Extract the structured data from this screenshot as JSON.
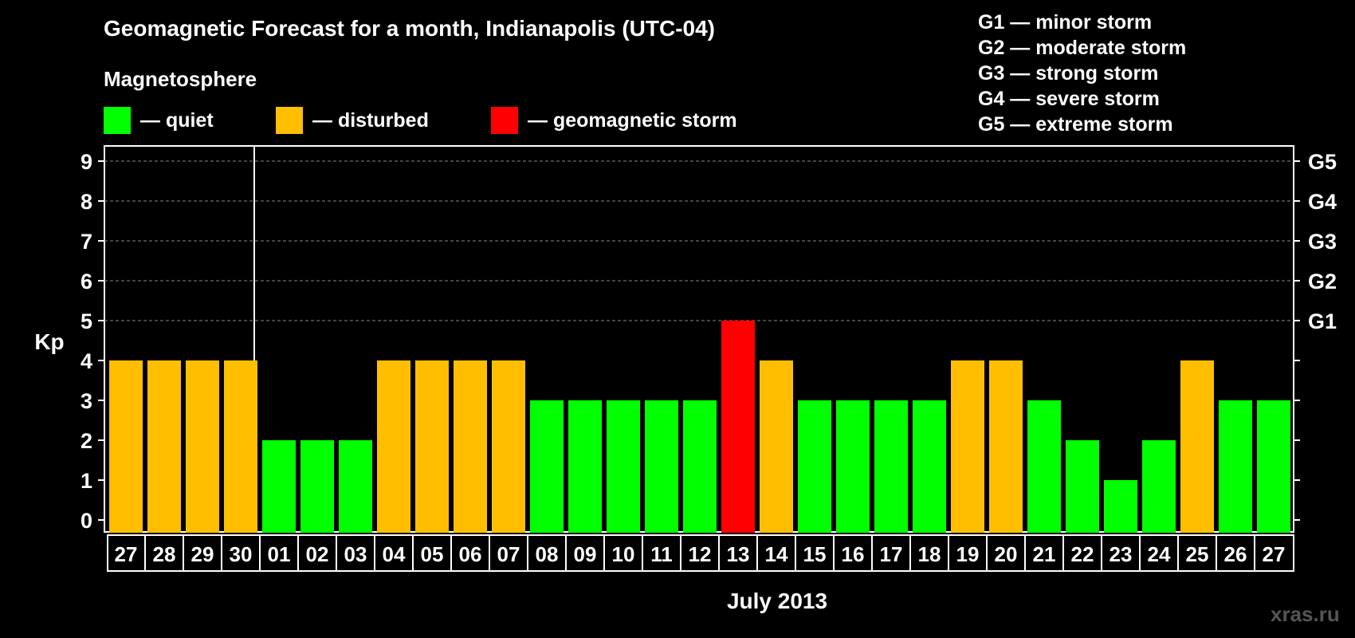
{
  "chart_data": {
    "type": "bar",
    "title": "Geomagnetic Forecast for a month, Indianapolis (UTC-04)",
    "subtitle": "Magnetosphere",
    "ylabel": "Kp",
    "xlabel": "July 2013",
    "ylim": [
      0,
      9
    ],
    "yticks": [
      "0",
      "1",
      "2",
      "3",
      "4",
      "5",
      "6",
      "7",
      "8",
      "9"
    ],
    "right_axis_labels": [
      {
        "kp": 5,
        "label": "G1"
      },
      {
        "kp": 6,
        "label": "G2"
      },
      {
        "kp": 7,
        "label": "G3"
      },
      {
        "kp": 8,
        "label": "G4"
      },
      {
        "kp": 9,
        "label": "G5"
      }
    ],
    "categories": [
      "27",
      "28",
      "29",
      "30",
      "01",
      "02",
      "03",
      "04",
      "05",
      "06",
      "07",
      "08",
      "09",
      "10",
      "11",
      "12",
      "13",
      "14",
      "15",
      "16",
      "17",
      "18",
      "19",
      "20",
      "21",
      "22",
      "23",
      "24",
      "25",
      "26",
      "27"
    ],
    "values": [
      4,
      4,
      4,
      4,
      2,
      2,
      2,
      4,
      4,
      4,
      4,
      3,
      3,
      3,
      3,
      3,
      5,
      4,
      3,
      3,
      3,
      3,
      4,
      4,
      3,
      2,
      1,
      2,
      4,
      3,
      3
    ],
    "month_divider_after_index": 3,
    "legend": [
      {
        "label": "— quiet",
        "color": "#00ff00"
      },
      {
        "label": "— disturbed",
        "color": "#ffbf00"
      },
      {
        "label": "— geomagnetic storm",
        "color": "#ff0000"
      }
    ],
    "storm_scale": [
      "G1 — minor storm",
      "G2 — moderate storm",
      "G3 — strong storm",
      "G4 — severe storm",
      "G5 — extreme storm"
    ],
    "grid": "dashed horizontal at Kp 5-9"
  },
  "watermark": "xras.ru"
}
